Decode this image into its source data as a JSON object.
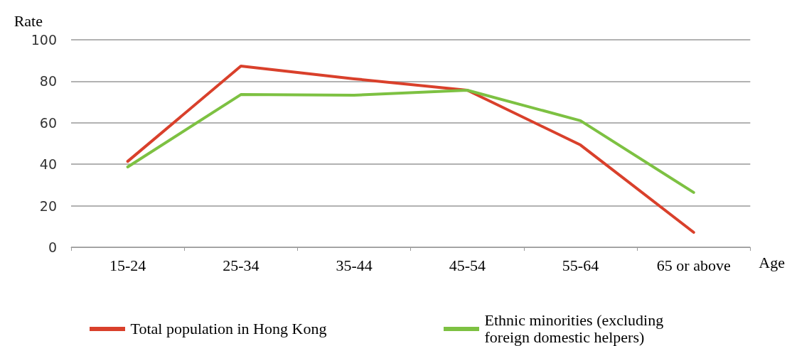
{
  "chart_data": {
    "type": "line",
    "ylabel": "Rate",
    "xlabel": "Age",
    "categories": [
      "15-24",
      "25-34",
      "35-44",
      "45-54",
      "55-64",
      "65 or above"
    ],
    "series": [
      {
        "name": "Total population in Hong Kong",
        "color": "#d9402b",
        "values": [
          41.4,
          87.3,
          81.2,
          75.7,
          49.3,
          7.2
        ]
      },
      {
        "name": "Ethnic minorities (excluding foreign domestic helpers)",
        "color": "#7dc142",
        "values": [
          38.7,
          73.6,
          73.3,
          75.7,
          61,
          26.4
        ]
      }
    ],
    "ylim": [
      0,
      100
    ],
    "yticks": [
      0,
      20,
      40,
      60,
      80,
      100
    ],
    "grid": "y",
    "legend": "bottom",
    "marker": "none",
    "line_style": "solid"
  }
}
